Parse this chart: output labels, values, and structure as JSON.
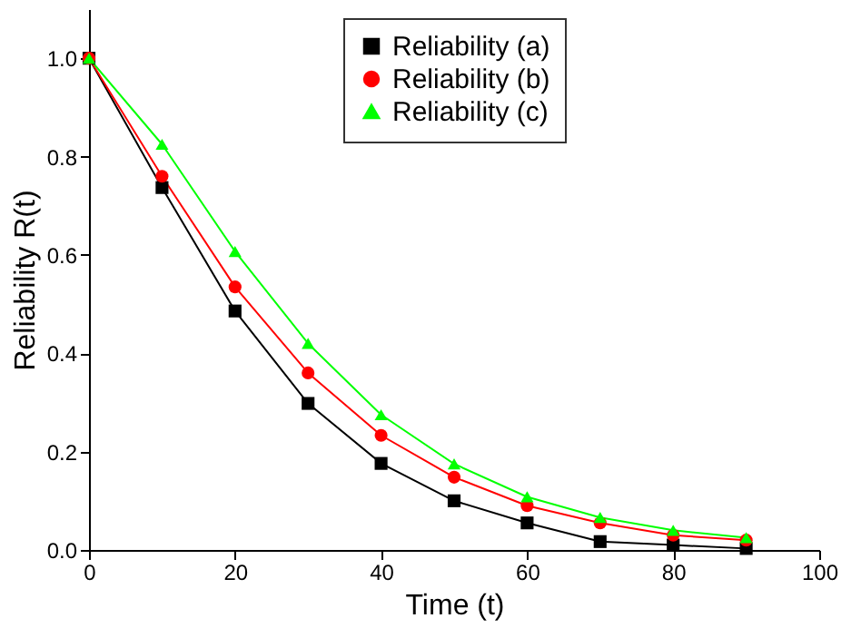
{
  "chart_data": {
    "type": "line",
    "xlabel": "Time (t)",
    "ylabel": "Reliability R(t)",
    "x": [
      0,
      10,
      20,
      30,
      40,
      50,
      60,
      70,
      80,
      90
    ],
    "xlim": [
      0,
      100
    ],
    "xticks": [
      0,
      20,
      40,
      60,
      80,
      100
    ],
    "ylim": [
      0,
      1.1
    ],
    "yticks": [
      {
        "value": 0,
        "label": "0.0"
      },
      0.2,
      0.4,
      0.6,
      0.8,
      {
        "value": 1,
        "label": "1.0"
      }
    ],
    "grid": false,
    "legend": "top",
    "line_style": "solid",
    "series": [
      {
        "name": "Reliability (a)",
        "color": "#000000",
        "marker": "square",
        "values": [
          1.0,
          0.737,
          0.486,
          0.298,
          0.176,
          0.1,
          0.055,
          0.017,
          0.01,
          0.003
        ]
      },
      {
        "name": "Reliability (b)",
        "color": "#ff0000",
        "marker": "circle",
        "values": [
          1.0,
          0.76,
          0.535,
          0.36,
          0.233,
          0.148,
          0.09,
          0.055,
          0.03,
          0.02
        ]
      },
      {
        "name": "Reliability (c)",
        "color": "#00ff00",
        "marker": "triangle",
        "values": [
          1.0,
          0.825,
          0.607,
          0.42,
          0.275,
          0.175,
          0.108,
          0.066,
          0.04,
          0.025
        ]
      }
    ]
  }
}
